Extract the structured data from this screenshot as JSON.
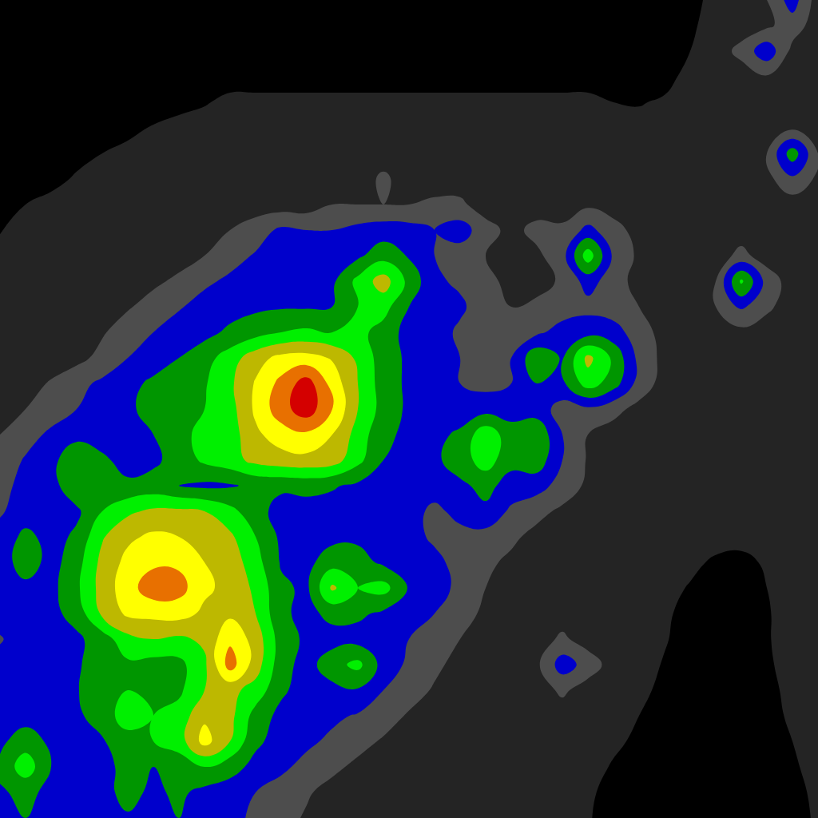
{
  "chart_data": {
    "type": "contour",
    "x": [
      0,
      32,
      64,
      96,
      128,
      160,
      192,
      224,
      256,
      288,
      320,
      352,
      384,
      416,
      448,
      480,
      512,
      544,
      576,
      608,
      640,
      672,
      704,
      736,
      768,
      800,
      832,
      864,
      896,
      928,
      960,
      992,
      1024
    ],
    "y": [
      0,
      32,
      64,
      96,
      128,
      160,
      192,
      224,
      256,
      288,
      320,
      352,
      384,
      416,
      448,
      480,
      512,
      544,
      576,
      608,
      640,
      672,
      704,
      736,
      768,
      800,
      832,
      864,
      896,
      928,
      960,
      992,
      1024
    ],
    "z": [
      [
        0.5,
        0.5,
        0.5,
        0.5,
        0.5,
        0.5,
        0.5,
        0.5,
        0.5,
        0.5,
        0.5,
        0.5,
        0.5,
        0.5,
        0.5,
        0.5,
        0.5,
        0.5,
        0.5,
        0.5,
        0.5,
        0.5,
        0.5,
        0.5,
        0.5,
        0.5,
        0.5,
        0.5,
        1.5,
        1.5,
        2.0,
        3.5,
        1.5
      ],
      [
        0.5,
        0.5,
        0.5,
        0.5,
        0.5,
        0.5,
        0.5,
        0.5,
        0.5,
        0.5,
        0.5,
        0.5,
        0.5,
        0.5,
        0.5,
        0.5,
        0.5,
        0.5,
        0.5,
        0.5,
        0.5,
        0.5,
        0.5,
        0.5,
        0.5,
        0.5,
        0.5,
        0.8,
        1.5,
        1.5,
        1.8,
        2.5,
        1.5
      ],
      [
        0.5,
        0.5,
        0.5,
        0.5,
        0.5,
        0.5,
        0.5,
        0.5,
        0.5,
        0.5,
        0.5,
        0.5,
        0.5,
        0.5,
        0.5,
        0.5,
        0.5,
        0.5,
        0.5,
        0.5,
        0.5,
        0.5,
        0.5,
        0.5,
        0.5,
        0.5,
        0.5,
        1.0,
        1.5,
        2.3,
        3.7,
        1.7,
        1.5
      ],
      [
        0.5,
        0.5,
        0.5,
        0.5,
        0.5,
        0.5,
        0.5,
        0.5,
        0.5,
        0.5,
        0.5,
        0.5,
        0.5,
        0.5,
        0.5,
        0.5,
        0.5,
        0.5,
        0.5,
        0.5,
        0.5,
        0.5,
        0.5,
        0.5,
        0.5,
        0.5,
        0.5,
        1.5,
        1.5,
        1.5,
        1.9,
        1.5,
        1.5
      ],
      [
        0.5,
        0.5,
        0.5,
        0.5,
        0.5,
        0.5,
        0.5,
        0.5,
        0.9,
        1.3,
        1.3,
        1.3,
        1.3,
        1.3,
        1.3,
        1.3,
        1.3,
        1.3,
        1.3,
        1.3,
        1.3,
        1.3,
        1.3,
        1.3,
        1.0,
        0.9,
        1.2,
        1.5,
        1.5,
        1.5,
        1.5,
        1.5,
        1.5
      ],
      [
        0.5,
        0.5,
        0.5,
        0.5,
        0.5,
        0.5,
        1.1,
        1.5,
        1.5,
        1.5,
        1.5,
        1.5,
        1.5,
        1.5,
        1.5,
        1.5,
        1.5,
        1.5,
        1.5,
        1.5,
        1.5,
        1.5,
        1.5,
        1.5,
        1.5,
        1.5,
        1.5,
        1.5,
        1.5,
        1.5,
        1.5,
        1.8,
        1.5
      ],
      [
        0.5,
        0.5,
        0.5,
        0.5,
        1.0,
        1.5,
        1.5,
        1.5,
        1.5,
        1.5,
        1.5,
        1.5,
        1.5,
        1.5,
        1.5,
        1.5,
        1.5,
        1.5,
        1.5,
        1.5,
        1.5,
        1.5,
        1.5,
        1.5,
        1.5,
        1.5,
        1.5,
        1.5,
        1.5,
        1.5,
        2.0,
        4.6,
        2.0
      ],
      [
        0.5,
        0.5,
        0.5,
        1.2,
        1.5,
        1.5,
        1.5,
        1.5,
        1.5,
        1.5,
        1.5,
        1.5,
        1.5,
        1.5,
        1.5,
        2.2,
        1.5,
        1.5,
        1.5,
        1.5,
        1.8,
        1.5,
        1.5,
        1.5,
        1.5,
        1.5,
        1.5,
        1.5,
        1.5,
        1.5,
        1.7,
        2.8,
        1.8
      ],
      [
        0.5,
        1.0,
        1.5,
        1.5,
        1.5,
        1.5,
        1.5,
        1.5,
        1.5,
        1.5,
        1.5,
        1.5,
        1.5,
        2.0,
        2.0,
        2.0,
        2.0,
        2.2,
        2.2,
        1.5,
        1.5,
        1.5,
        1.5,
        1.8,
        1.5,
        1.5,
        1.5,
        1.5,
        1.5,
        1.5,
        1.5,
        1.5,
        1.5
      ],
      [
        0.9,
        1.5,
        1.5,
        1.5,
        1.5,
        1.5,
        1.5,
        1.5,
        1.5,
        2.0,
        2.5,
        3.2,
        3.0,
        3.0,
        3.3,
        3.5,
        3.4,
        3.0,
        3.5,
        2.4,
        1.7,
        2.3,
        2.2,
        3.3,
        2.4,
        1.6,
        1.5,
        1.5,
        1.5,
        1.5,
        1.5,
        1.5,
        1.5
      ],
      [
        1.5,
        1.5,
        1.5,
        1.5,
        1.5,
        1.5,
        1.5,
        1.6,
        2.0,
        2.6,
        3.1,
        3.4,
        3.3,
        3.5,
        3.8,
        4.6,
        3.9,
        3.0,
        2.5,
        2.0,
        1.6,
        1.8,
        2.6,
        5.6,
        2.8,
        1.8,
        1.5,
        1.5,
        1.5,
        2.3,
        1.5,
        1.5,
        1.5
      ],
      [
        1.5,
        1.5,
        1.5,
        1.5,
        1.5,
        1.5,
        1.8,
        2.2,
        2.8,
        3.2,
        3.5,
        3.5,
        3.6,
        3.8,
        5.3,
        6.5,
        4.7,
        3.2,
        2.8,
        2.3,
        1.7,
        1.5,
        2.2,
        3.4,
        2.5,
        1.6,
        1.5,
        1.5,
        2.0,
        5.2,
        2.6,
        1.5,
        1.5
      ],
      [
        1.5,
        1.5,
        1.5,
        1.5,
        1.5,
        1.9,
        2.4,
        2.9,
        3.4,
        3.6,
        3.8,
        3.9,
        3.9,
        4.0,
        5.0,
        5.4,
        4.0,
        3.2,
        3.2,
        2.4,
        2.0,
        2.3,
        2.5,
        2.7,
        2.5,
        2.0,
        1.5,
        1.5,
        2.0,
        3.2,
        2.2,
        1.5,
        1.5
      ],
      [
        1.5,
        1.5,
        1.5,
        1.5,
        1.9,
        2.5,
        3.0,
        3.5,
        3.7,
        4.2,
        4.6,
        5.0,
        5.2,
        5.0,
        5.3,
        4.6,
        3.6,
        3.5,
        2.8,
        2.6,
        2.5,
        2.8,
        3.4,
        3.6,
        3.4,
        2.5,
        1.6,
        1.5,
        1.6,
        1.7,
        1.5,
        1.5,
        1.5
      ],
      [
        1.5,
        1.5,
        1.5,
        1.7,
        2.3,
        3.0,
        3.5,
        4.0,
        4.6,
        5.5,
        6.6,
        7.3,
        7.4,
        6.9,
        5.8,
        4.5,
        3.8,
        3.5,
        3.0,
        2.8,
        3.0,
        4.8,
        3.9,
        6.3,
        4.8,
        2.7,
        1.7,
        1.5,
        1.5,
        1.5,
        1.5,
        1.5,
        1.5
      ],
      [
        1.5,
        1.6,
        2.1,
        2.7,
        3.2,
        3.7,
        4.2,
        4.5,
        4.9,
        5.8,
        7.1,
        8.3,
        9.5,
        7.6,
        6.0,
        4.5,
        3.8,
        3.6,
        3.0,
        2.7,
        3.0,
        4.0,
        3.8,
        5.5,
        4.5,
        2.6,
        1.6,
        1.5,
        1.5,
        1.5,
        1.5,
        1.5,
        1.5
      ],
      [
        1.7,
        2.0,
        2.5,
        3.0,
        3.4,
        3.8,
        4.4,
        4.6,
        5.0,
        5.6,
        7.2,
        8.6,
        9.6,
        8.0,
        6.0,
        4.6,
        3.8,
        3.6,
        3.4,
        3.6,
        3.6,
        3.5,
        2.6,
        2.8,
        2.3,
        1.7,
        1.5,
        1.5,
        1.5,
        1.5,
        1.5,
        1.5,
        1.5
      ],
      [
        2.0,
        2.6,
        3.2,
        3.6,
        3.5,
        3.6,
        4.0,
        4.8,
        5.2,
        5.5,
        6.8,
        7.5,
        7.8,
        7.0,
        5.6,
        4.2,
        3.8,
        3.7,
        4.2,
        5.7,
        4.4,
        4.8,
        3.0,
        2.0,
        1.6,
        1.5,
        1.5,
        1.5,
        1.5,
        1.5,
        1.5,
        1.5,
        1.5
      ],
      [
        2.4,
        3.1,
        3.6,
        5.0,
        4.2,
        3.6,
        3.8,
        4.4,
        5.2,
        5.6,
        6.3,
        6.6,
        6.7,
        6.5,
        5.3,
        4.0,
        3.7,
        3.8,
        4.5,
        5.5,
        4.3,
        4.6,
        3.0,
        1.9,
        1.5,
        1.5,
        1.5,
        1.5,
        1.5,
        1.5,
        1.5,
        1.5,
        1.5
      ],
      [
        2.7,
        3.3,
        3.6,
        4.8,
        4.3,
        4.2,
        4.4,
        4.0,
        3.8,
        3.9,
        4.2,
        4.2,
        4.3,
        4.1,
        3.8,
        3.7,
        3.6,
        3.6,
        3.8,
        4.3,
        3.6,
        3.4,
        2.6,
        1.8,
        1.5,
        1.5,
        1.5,
        1.5,
        1.5,
        1.5,
        1.5,
        1.5,
        1.5
      ],
      [
        2.9,
        3.4,
        3.5,
        3.8,
        5.0,
        5.8,
        6.2,
        6.2,
        6.0,
        5.3,
        4.4,
        3.6,
        3.6,
        3.6,
        3.7,
        3.5,
        3.5,
        2.7,
        3.4,
        3.8,
        2.8,
        2.3,
        1.8,
        1.5,
        1.5,
        1.5,
        1.5,
        1.5,
        1.5,
        1.5,
        1.5,
        1.5,
        1.5
      ],
      [
        3.3,
        4.3,
        3.6,
        4.2,
        5.9,
        6.8,
        7.2,
        7.0,
        6.6,
        6.2,
        5.0,
        3.8,
        3.6,
        3.7,
        3.8,
        3.6,
        3.4,
        2.8,
        2.6,
        2.6,
        2.2,
        1.7,
        1.5,
        1.5,
        1.5,
        1.5,
        1.5,
        1.5,
        1.5,
        1.5,
        1.5,
        1.5,
        1.5
      ],
      [
        3.4,
        4.6,
        3.6,
        4.6,
        6.3,
        7.3,
        7.8,
        7.8,
        7.0,
        6.6,
        5.4,
        3.9,
        3.7,
        4.6,
        4.4,
        3.8,
        3.5,
        3.3,
        2.6,
        2.2,
        1.8,
        1.5,
        1.5,
        1.5,
        1.5,
        1.5,
        1.5,
        1.3,
        0.8,
        0.6,
        1.2,
        1.5,
        1.5
      ],
      [
        3.5,
        3.7,
        3.7,
        4.8,
        6.4,
        7.6,
        8.6,
        8.4,
        7.2,
        6.7,
        5.8,
        4.2,
        3.8,
        6.2,
        5.0,
        5.4,
        3.9,
        3.5,
        2.7,
        2.0,
        1.6,
        1.5,
        1.5,
        1.5,
        1.5,
        1.5,
        1.4,
        0.9,
        0.5,
        0.5,
        1.0,
        1.5,
        1.5
      ],
      [
        3.5,
        3.6,
        3.7,
        4.4,
        6.2,
        7.2,
        7.3,
        7.4,
        6.8,
        6.8,
        6.0,
        4.2,
        3.7,
        4.3,
        4.2,
        3.8,
        3.5,
        3.0,
        2.4,
        1.8,
        1.5,
        1.5,
        1.5,
        1.5,
        1.5,
        1.5,
        1.2,
        0.6,
        0.5,
        0.5,
        0.9,
        1.5,
        1.5
      ],
      [
        2.9,
        3.6,
        3.6,
        3.8,
        4.5,
        5.7,
        6.0,
        5.8,
        6.2,
        7.8,
        6.6,
        4.5,
        3.8,
        3.6,
        3.6,
        3.5,
        3.0,
        2.5,
        2.0,
        1.6,
        1.5,
        1.5,
        2.2,
        1.5,
        1.5,
        1.5,
        1.1,
        0.5,
        0.5,
        0.5,
        0.9,
        1.5,
        1.5
      ],
      [
        3.4,
        3.6,
        3.6,
        3.8,
        4.8,
        4.8,
        4.6,
        4.7,
        5.8,
        8.5,
        6.5,
        4.4,
        3.6,
        4.6,
        5.3,
        3.6,
        2.8,
        2.2,
        1.7,
        1.5,
        1.5,
        1.8,
        3.5,
        2.6,
        1.5,
        1.5,
        0.9,
        0.5,
        0.5,
        0.5,
        0.8,
        1.5,
        1.5
      ],
      [
        3.5,
        3.6,
        3.7,
        3.9,
        5.0,
        5.0,
        4.6,
        4.8,
        6.0,
        6.3,
        5.6,
        4.2,
        3.5,
        3.7,
        3.9,
        3.0,
        2.4,
        1.9,
        1.6,
        1.5,
        1.5,
        1.5,
        2.2,
        1.5,
        1.5,
        1.3,
        0.7,
        0.5,
        0.5,
        0.5,
        0.7,
        1.3,
        1.5
      ],
      [
        3.5,
        3.6,
        3.6,
        3.8,
        4.5,
        5.5,
        5.0,
        5.4,
        6.8,
        6.3,
        4.6,
        3.7,
        3.5,
        3.2,
        2.9,
        2.4,
        1.9,
        1.6,
        1.5,
        1.5,
        1.5,
        1.5,
        1.5,
        1.5,
        1.5,
        1.0,
        0.5,
        0.5,
        0.5,
        0.5,
        0.6,
        1.2,
        1.5
      ],
      [
        3.8,
        4.5,
        3.8,
        3.6,
        3.9,
        4.6,
        5.0,
        5.5,
        7.4,
        6.0,
        4.2,
        3.6,
        3.2,
        2.8,
        2.3,
        1.9,
        1.6,
        1.5,
        1.5,
        1.5,
        1.5,
        1.5,
        1.5,
        1.5,
        1.2,
        0.8,
        0.5,
        0.5,
        0.5,
        0.5,
        0.5,
        1.0,
        1.5
      ],
      [
        4.2,
        5.6,
        4.0,
        3.6,
        3.6,
        4.4,
        4.0,
        4.4,
        5.0,
        4.4,
        3.7,
        3.2,
        2.7,
        2.2,
        1.8,
        1.5,
        1.5,
        1.5,
        1.5,
        1.5,
        1.5,
        1.5,
        1.5,
        1.4,
        0.9,
        0.5,
        0.5,
        0.5,
        0.5,
        0.5,
        0.5,
        0.8,
        1.5
      ],
      [
        3.9,
        4.2,
        3.8,
        3.6,
        3.7,
        4.3,
        3.8,
        4.2,
        3.7,
        3.5,
        3.0,
        2.6,
        2.1,
        1.7,
        1.5,
        1.5,
        1.5,
        1.5,
        1.5,
        1.5,
        1.5,
        1.5,
        1.5,
        1.2,
        0.6,
        0.5,
        0.5,
        0.5,
        0.5,
        0.5,
        0.5,
        0.6,
        1.3
      ],
      [
        3.8,
        4.0,
        3.7,
        3.6,
        3.8,
        3.9,
        3.9,
        4.0,
        3.6,
        3.3,
        2.8,
        2.3,
        1.9,
        1.6,
        1.5,
        1.5,
        1.5,
        1.5,
        1.5,
        1.5,
        1.5,
        1.5,
        1.5,
        1.1,
        0.5,
        0.5,
        0.5,
        0.5,
        0.5,
        0.5,
        0.5,
        0.5,
        1.2
      ]
    ],
    "levels": [
      1,
      2,
      3,
      4,
      5,
      6,
      7,
      8,
      9
    ],
    "colors": [
      "#000000",
      "#242424",
      "#4d4d4d",
      "#0000cc",
      "#009600",
      "#00f000",
      "#bdb800",
      "#ffff00",
      "#e87000",
      "#d40000"
    ],
    "xlim": [
      0,
      1024
    ],
    "ylim": [
      1024,
      0
    ],
    "tick_labels": false
  }
}
